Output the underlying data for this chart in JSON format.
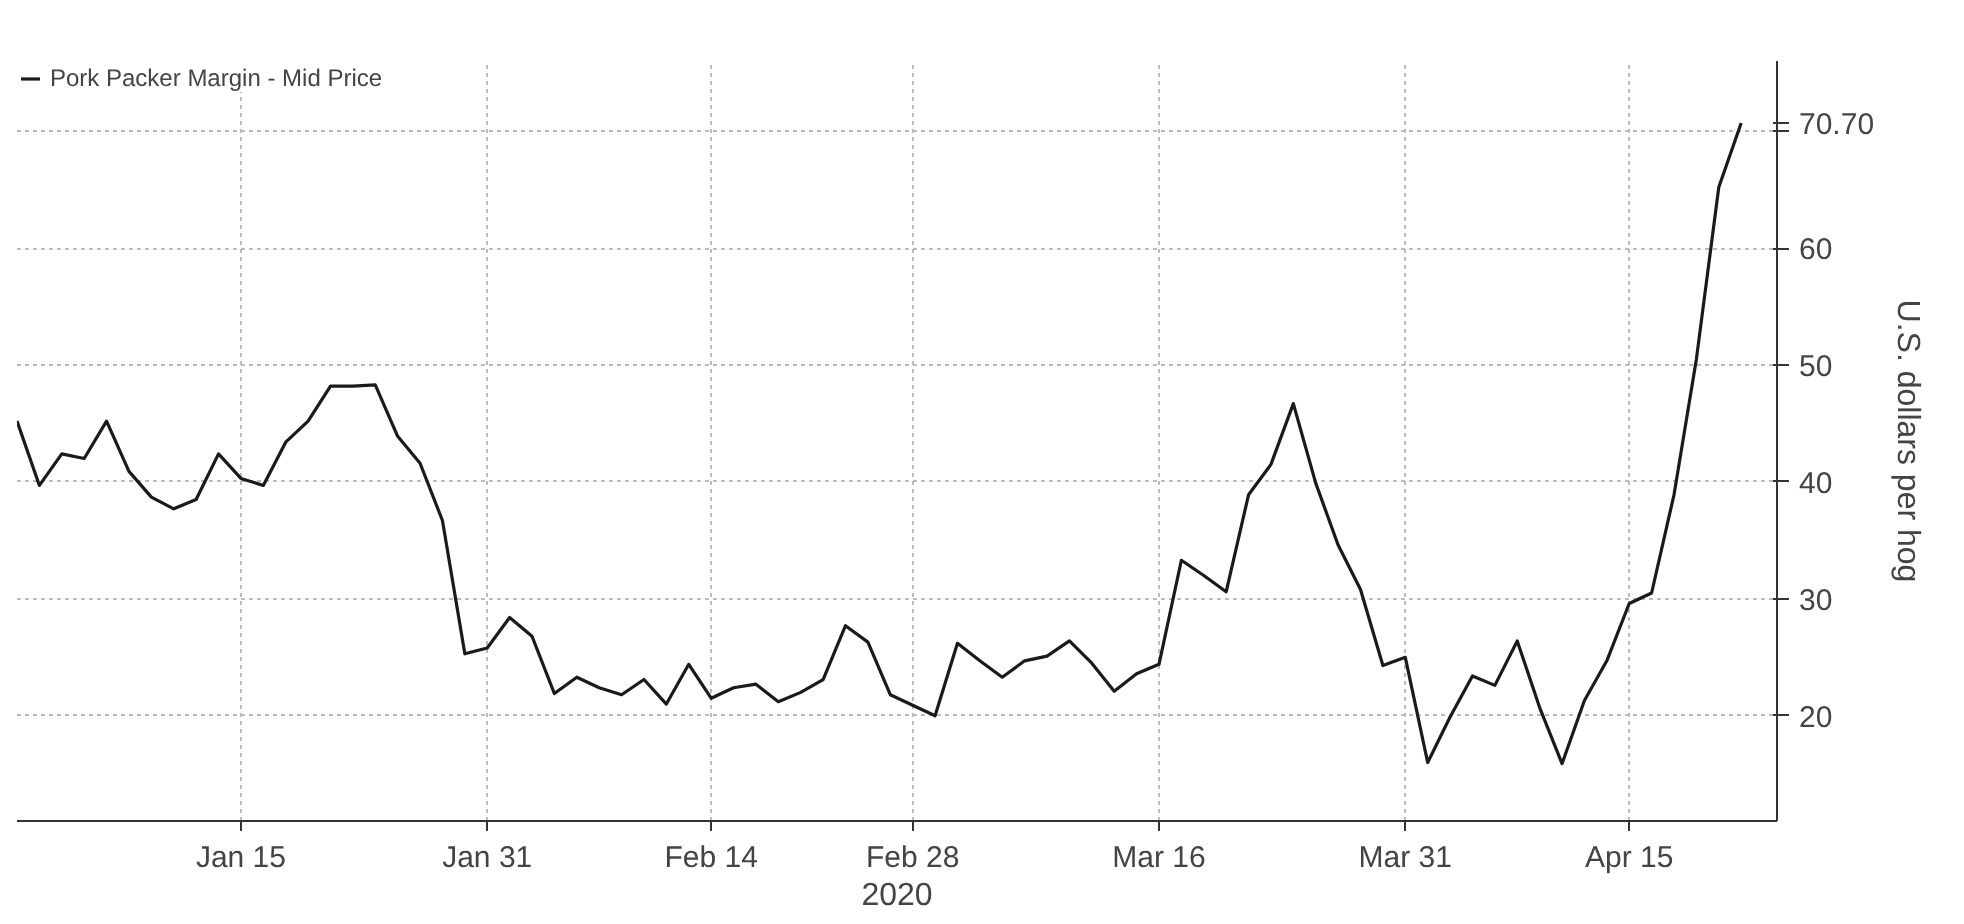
{
  "chart_data": {
    "type": "line",
    "xlabel": "2020",
    "ylabel": "U.S. dollars per hog",
    "categories": [
      null,
      null,
      null,
      null,
      null,
      null,
      null,
      null,
      null,
      null,
      "Jan 15",
      null,
      null,
      null,
      null,
      null,
      null,
      null,
      null,
      null,
      null,
      "Jan 31",
      null,
      null,
      null,
      null,
      null,
      null,
      null,
      null,
      null,
      "Feb 14",
      null,
      null,
      null,
      null,
      null,
      null,
      null,
      null,
      "Feb 28",
      null,
      null,
      null,
      null,
      null,
      null,
      null,
      null,
      null,
      null,
      "Mar 16",
      null,
      null,
      null,
      null,
      null,
      null,
      null,
      null,
      null,
      null,
      "Mar 31",
      null,
      null,
      null,
      null,
      null,
      null,
      null,
      null,
      null,
      "Apr 15",
      null,
      null,
      null,
      null,
      null
    ],
    "series": [
      {
        "name": "Pork Packer Margin - Mid Price",
        "color": "#1a1a1a",
        "values": [
          45.2,
          39.7,
          42.4,
          42.0,
          45.2,
          40.9,
          38.7,
          37.7,
          38.5,
          42.4,
          40.3,
          39.7,
          43.4,
          45.2,
          48.2,
          48.2,
          48.3,
          43.9,
          41.6,
          36.7,
          25.3,
          25.8,
          28.4,
          26.8,
          21.9,
          23.3,
          22.4,
          21.8,
          23.1,
          21.0,
          24.4,
          21.5,
          22.4,
          22.7,
          21.2,
          22.0,
          23.1,
          27.7,
          26.3,
          21.8,
          20.9,
          20.0,
          26.2,
          24.7,
          23.3,
          24.7,
          25.1,
          26.4,
          24.5,
          22.1,
          23.6,
          24.4,
          33.3,
          32.0,
          30.6,
          38.9,
          41.5,
          46.7,
          39.9,
          34.6,
          30.8,
          24.3,
          25.0,
          16.0,
          19.9,
          23.4,
          22.6,
          26.4,
          20.7,
          15.9,
          21.3,
          24.7,
          29.6,
          30.5,
          38.9,
          50.5,
          65.2,
          70.7
        ]
      }
    ],
    "ylim": [
      11,
      76
    ],
    "yticks": [
      20,
      30,
      40,
      50,
      60,
      {
        "value": 70,
        "label": null
      }
    ],
    "annotations": [
      "70.70"
    ],
    "grid": true,
    "legend": "top left",
    "line_style": "solid",
    "marker": "none"
  }
}
